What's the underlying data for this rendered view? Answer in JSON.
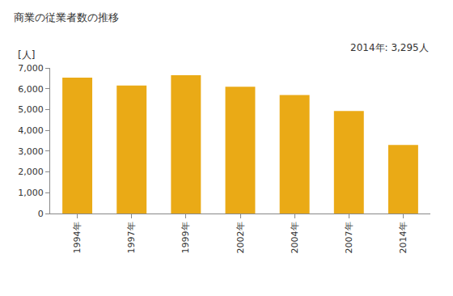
{
  "chart_data": {
    "type": "bar",
    "title": "商業の従業者数の推移",
    "y_label": "[人]",
    "annotations": [
      "2014年: 3,295人"
    ],
    "categories": [
      "1994年",
      "1997年",
      "1999年",
      "2002年",
      "2004年",
      "2007年",
      "2014年"
    ],
    "values": [
      6530,
      6150,
      6650,
      6100,
      5700,
      4930,
      3295
    ],
    "color": "#eaaa16",
    "ylim": [
      0,
      7000
    ],
    "yticks": [
      0,
      {
        "value": 1000,
        "label": "1,000"
      },
      {
        "value": 2000,
        "label": "2,000"
      },
      {
        "value": 3000,
        "label": "3,000"
      },
      {
        "value": 4000,
        "label": "4,000"
      },
      {
        "value": 5000,
        "label": "5,000"
      },
      {
        "value": 6000,
        "label": "6,000"
      },
      {
        "value": 7000,
        "label": "7,000"
      }
    ],
    "grid": false
  }
}
